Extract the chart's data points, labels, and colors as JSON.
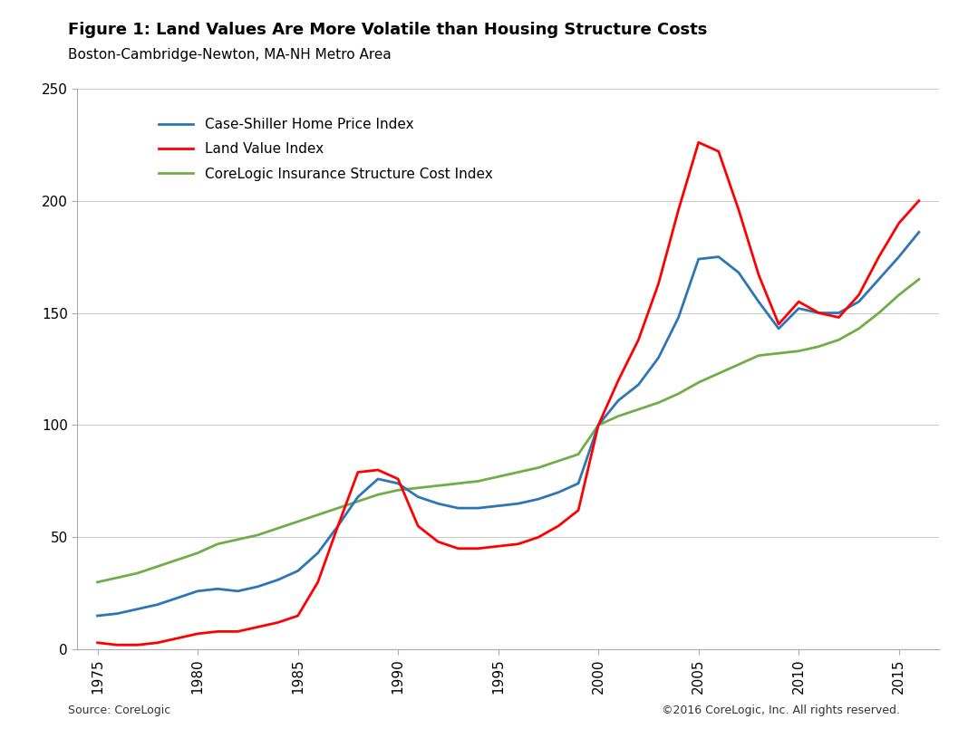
{
  "title_bold": "Figure 1: Land Values Are More Volatile than Housing Structure Costs",
  "title_sub": "Boston-Cambridge-Newton, MA-NH Metro Area",
  "source_left": "Source: CoreLogic",
  "source_right": "©2016 CoreLogic, Inc. All rights reserved.",
  "legend_labels": [
    "Case-Shiller Home Price Index",
    "Land Value Index",
    "CoreLogic Insurance Structure Cost Index"
  ],
  "line_colors": [
    "#2E75B6",
    "#FF0000",
    "#70AD47"
  ],
  "line_width": 2.0,
  "ylim": [
    0,
    250
  ],
  "yticks": [
    0,
    50,
    100,
    150,
    200,
    250
  ],
  "xticks": [
    1975,
    1980,
    1985,
    1990,
    1995,
    2000,
    2005,
    2010,
    2015
  ],
  "xlim": [
    1974,
    2017
  ],
  "background_color": "#FFFFFF",
  "plot_bg_color": "#FFFFFF",
  "case_shiller": {
    "years": [
      1975,
      1976,
      1977,
      1978,
      1979,
      1980,
      1981,
      1982,
      1983,
      1984,
      1985,
      1986,
      1987,
      1988,
      1989,
      1990,
      1991,
      1992,
      1993,
      1994,
      1995,
      1996,
      1997,
      1998,
      1999,
      2000,
      2001,
      2002,
      2003,
      2004,
      2005,
      2006,
      2007,
      2008,
      2009,
      2010,
      2011,
      2012,
      2013,
      2014,
      2015,
      2016
    ],
    "values": [
      15,
      16,
      18,
      20,
      23,
      26,
      27,
      26,
      28,
      31,
      35,
      43,
      55,
      68,
      76,
      74,
      68,
      65,
      63,
      63,
      64,
      65,
      67,
      70,
      74,
      100,
      111,
      118,
      130,
      148,
      174,
      175,
      168,
      155,
      143,
      152,
      150,
      150,
      155,
      165,
      175,
      186
    ]
  },
  "land_value": {
    "years": [
      1975,
      1976,
      1977,
      1978,
      1979,
      1980,
      1981,
      1982,
      1983,
      1984,
      1985,
      1986,
      1987,
      1988,
      1989,
      1990,
      1991,
      1992,
      1993,
      1994,
      1995,
      1996,
      1997,
      1998,
      1999,
      2000,
      2001,
      2002,
      2003,
      2004,
      2005,
      2006,
      2007,
      2008,
      2009,
      2010,
      2011,
      2012,
      2013,
      2014,
      2015,
      2016
    ],
    "values": [
      3,
      2,
      2,
      3,
      5,
      7,
      8,
      8,
      10,
      12,
      15,
      30,
      55,
      79,
      80,
      76,
      55,
      48,
      45,
      45,
      46,
      47,
      50,
      55,
      62,
      100,
      120,
      138,
      163,
      196,
      226,
      222,
      196,
      167,
      145,
      155,
      150,
      148,
      158,
      175,
      190,
      200
    ]
  },
  "structure_cost": {
    "years": [
      1975,
      1976,
      1977,
      1978,
      1979,
      1980,
      1981,
      1982,
      1983,
      1984,
      1985,
      1986,
      1987,
      1988,
      1989,
      1990,
      1991,
      1992,
      1993,
      1994,
      1995,
      1996,
      1997,
      1998,
      1999,
      2000,
      2001,
      2002,
      2003,
      2004,
      2005,
      2006,
      2007,
      2008,
      2009,
      2010,
      2011,
      2012,
      2013,
      2014,
      2015,
      2016
    ],
    "values": [
      30,
      32,
      34,
      37,
      40,
      43,
      47,
      49,
      51,
      54,
      57,
      60,
      63,
      66,
      69,
      71,
      72,
      73,
      74,
      75,
      77,
      79,
      81,
      84,
      87,
      100,
      104,
      107,
      110,
      114,
      119,
      123,
      127,
      131,
      132,
      133,
      135,
      138,
      143,
      150,
      158,
      165
    ]
  }
}
